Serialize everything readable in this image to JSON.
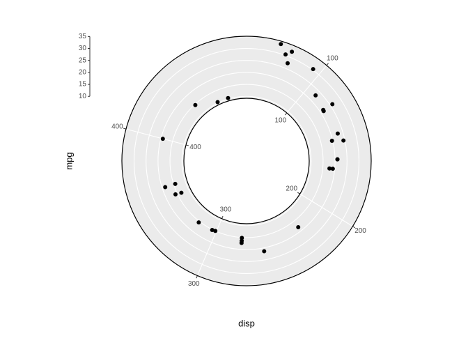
{
  "chart_data": {
    "type": "scatter",
    "coord": "radial",
    "x_label": "disp",
    "y_label": "mpg",
    "x": [
      160,
      160,
      108,
      258,
      360,
      225,
      360,
      146.7,
      140.8,
      167.6,
      167.6,
      275.8,
      275.8,
      275.8,
      472,
      460,
      440,
      78.7,
      75.7,
      71.1,
      120.1,
      318,
      304,
      350,
      400,
      79,
      120.3,
      95.1,
      351,
      145,
      301,
      121
    ],
    "values": [
      21.0,
      21.0,
      22.8,
      21.4,
      18.7,
      18.1,
      14.3,
      24.4,
      22.8,
      19.2,
      17.8,
      16.4,
      17.3,
      15.2,
      10.4,
      10.4,
      14.7,
      32.4,
      30.4,
      33.9,
      21.5,
      15.5,
      15.2,
      13.3,
      19.2,
      27.3,
      26.0,
      30.4,
      15.8,
      19.7,
      15.0,
      21.4
    ],
    "color": "#000000",
    "xlim": [
      51.05,
      492.05
    ],
    "xticks": [
      100,
      200,
      300,
      400
    ],
    "ylim": [
      9.2,
      35.1
    ],
    "yticks": [
      10,
      15,
      20,
      25,
      30,
      35
    ],
    "grid": true
  }
}
